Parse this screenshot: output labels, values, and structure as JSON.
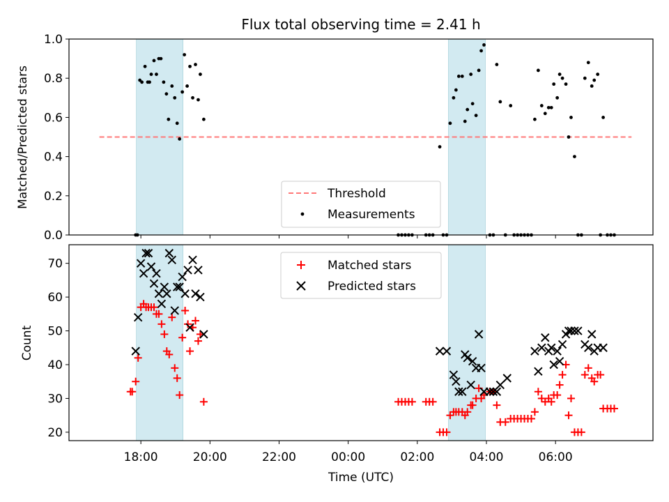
{
  "chart_data": [
    {
      "type": "scatter",
      "title": "Flux total observing time = 2.41 h",
      "xlabel": "",
      "ylabel": "Matched/Predicted stars",
      "ylim": [
        0,
        1.0
      ],
      "yticks": [
        "0.0",
        "0.2",
        "0.4",
        "0.6",
        "0.8",
        "1.0"
      ],
      "x_unit": "hours since 17:00 UTC",
      "highlight_spans": [
        [
          0.87,
          2.22
        ],
        [
          9.9,
          10.97
        ]
      ],
      "threshold": 0.5,
      "legend": {
        "placement": "lower-center",
        "threshold_label": "Threshold",
        "measurements_label": "Measurements"
      },
      "measurements": [
        [
          0.85,
          0
        ],
        [
          0.9,
          0
        ],
        [
          0.97,
          0.79
        ],
        [
          1.03,
          0.78
        ],
        [
          1.12,
          0.86
        ],
        [
          1.2,
          0.78
        ],
        [
          1.25,
          0.78
        ],
        [
          1.3,
          0.82
        ],
        [
          1.38,
          0.89
        ],
        [
          1.45,
          0.82
        ],
        [
          1.52,
          0.9
        ],
        [
          1.58,
          0.9
        ],
        [
          1.66,
          0.78
        ],
        [
          1.74,
          0.72
        ],
        [
          1.8,
          0.59
        ],
        [
          1.9,
          0.76
        ],
        [
          1.98,
          0.7
        ],
        [
          2.05,
          0.57
        ],
        [
          2.12,
          0.49
        ],
        [
          2.2,
          0.73
        ],
        [
          2.26,
          0.92
        ],
        [
          2.34,
          0.76
        ],
        [
          2.42,
          0.86
        ],
        [
          2.5,
          0.7
        ],
        [
          2.58,
          0.87
        ],
        [
          2.66,
          0.69
        ],
        [
          2.72,
          0.82
        ],
        [
          2.82,
          0.59
        ],
        [
          8.45,
          0
        ],
        [
          8.55,
          0
        ],
        [
          8.65,
          0
        ],
        [
          8.75,
          0
        ],
        [
          8.85,
          0
        ],
        [
          9.25,
          0
        ],
        [
          9.35,
          0
        ],
        [
          9.45,
          0
        ],
        [
          9.65,
          0.45
        ],
        [
          9.75,
          0
        ],
        [
          9.85,
          0
        ],
        [
          9.95,
          0.57
        ],
        [
          10.05,
          0.7
        ],
        [
          10.12,
          0.74
        ],
        [
          10.2,
          0.81
        ],
        [
          10.3,
          0.81
        ],
        [
          10.38,
          0.58
        ],
        [
          10.45,
          0.64
        ],
        [
          10.55,
          0.82
        ],
        [
          10.6,
          0.67
        ],
        [
          10.7,
          0.61
        ],
        [
          10.78,
          0.84
        ],
        [
          10.85,
          0.94
        ],
        [
          10.93,
          0.97
        ],
        [
          11.1,
          0
        ],
        [
          11.2,
          0
        ],
        [
          11.3,
          0.87
        ],
        [
          11.4,
          0.68
        ],
        [
          11.55,
          0
        ],
        [
          11.7,
          0.66
        ],
        [
          11.8,
          0
        ],
        [
          11.9,
          0
        ],
        [
          12.0,
          0
        ],
        [
          12.1,
          0
        ],
        [
          12.2,
          0
        ],
        [
          12.3,
          0
        ],
        [
          12.4,
          0.59
        ],
        [
          12.5,
          0.84
        ],
        [
          12.6,
          0.66
        ],
        [
          12.7,
          0.62
        ],
        [
          12.8,
          0.65
        ],
        [
          12.88,
          0.65
        ],
        [
          12.95,
          0.77
        ],
        [
          13.05,
          0.7
        ],
        [
          13.12,
          0.82
        ],
        [
          13.2,
          0.8
        ],
        [
          13.3,
          0.77
        ],
        [
          13.38,
          0.5
        ],
        [
          13.45,
          0.6
        ],
        [
          13.55,
          0.4
        ],
        [
          13.65,
          0
        ],
        [
          13.75,
          0
        ],
        [
          13.85,
          0.8
        ],
        [
          13.95,
          0.88
        ],
        [
          14.05,
          0.76
        ],
        [
          14.12,
          0.79
        ],
        [
          14.22,
          0.82
        ],
        [
          14.3,
          0
        ],
        [
          14.38,
          0.6
        ],
        [
          14.5,
          0
        ],
        [
          14.6,
          0
        ],
        [
          14.7,
          0
        ]
      ]
    },
    {
      "type": "scatter",
      "title": "",
      "xlabel": "Time (UTC)",
      "ylabel": "Count",
      "ylim": [
        17.5,
        75.5
      ],
      "yticks": [
        "20",
        "30",
        "40",
        "50",
        "60",
        "70"
      ],
      "xticks": [
        "18:00",
        "20:00",
        "22:00",
        "00:00",
        "02:00",
        "04:00",
        "06:00"
      ],
      "xlim_hours": [
        -1.08,
        15.82
      ],
      "legend": {
        "placement": "upper-center",
        "matched_label": "Matched stars",
        "predicted_label": "Predicted stars"
      },
      "colors": {
        "matched": "#ff0000",
        "predicted": "#000000",
        "span": "#add8e6",
        "threshold": "#ff7777"
      },
      "matched": [
        [
          0.7,
          32
        ],
        [
          0.75,
          32
        ],
        [
          0.85,
          35
        ],
        [
          0.92,
          42
        ],
        [
          1.0,
          57
        ],
        [
          1.08,
          58
        ],
        [
          1.15,
          57
        ],
        [
          1.22,
          57
        ],
        [
          1.3,
          57
        ],
        [
          1.38,
          57
        ],
        [
          1.45,
          55
        ],
        [
          1.52,
          55
        ],
        [
          1.6,
          52
        ],
        [
          1.68,
          49
        ],
        [
          1.75,
          44
        ],
        [
          1.82,
          43
        ],
        [
          1.9,
          54
        ],
        [
          1.98,
          39
        ],
        [
          2.05,
          36
        ],
        [
          2.12,
          31
        ],
        [
          2.2,
          48
        ],
        [
          2.28,
          56
        ],
        [
          2.36,
          52
        ],
        [
          2.42,
          44
        ],
        [
          2.5,
          51
        ],
        [
          2.58,
          53
        ],
        [
          2.66,
          47
        ],
        [
          2.72,
          49
        ],
        [
          2.82,
          29
        ],
        [
          8.45,
          29
        ],
        [
          8.55,
          29
        ],
        [
          8.65,
          29
        ],
        [
          8.75,
          29
        ],
        [
          8.85,
          29
        ],
        [
          9.25,
          29
        ],
        [
          9.35,
          29
        ],
        [
          9.45,
          29
        ],
        [
          9.65,
          20
        ],
        [
          9.75,
          20
        ],
        [
          9.85,
          20
        ],
        [
          9.95,
          25
        ],
        [
          10.05,
          26
        ],
        [
          10.12,
          26
        ],
        [
          10.2,
          26
        ],
        [
          10.3,
          26
        ],
        [
          10.38,
          25
        ],
        [
          10.45,
          26
        ],
        [
          10.55,
          28
        ],
        [
          10.6,
          28
        ],
        [
          10.7,
          30
        ],
        [
          10.78,
          33
        ],
        [
          10.85,
          30
        ],
        [
          10.93,
          31
        ],
        [
          11.1,
          32
        ],
        [
          11.2,
          32
        ],
        [
          11.3,
          28
        ],
        [
          11.4,
          23
        ],
        [
          11.55,
          23
        ],
        [
          11.7,
          24
        ],
        [
          11.8,
          24
        ],
        [
          11.9,
          24
        ],
        [
          12.0,
          24
        ],
        [
          12.1,
          24
        ],
        [
          12.2,
          24
        ],
        [
          12.3,
          24
        ],
        [
          12.4,
          26
        ],
        [
          12.5,
          32
        ],
        [
          12.6,
          30
        ],
        [
          12.7,
          29
        ],
        [
          12.8,
          30
        ],
        [
          12.88,
          29
        ],
        [
          12.95,
          31
        ],
        [
          13.05,
          31
        ],
        [
          13.12,
          34
        ],
        [
          13.2,
          37
        ],
        [
          13.3,
          40
        ],
        [
          13.38,
          25
        ],
        [
          13.45,
          30
        ],
        [
          13.55,
          20
        ],
        [
          13.65,
          20
        ],
        [
          13.75,
          20
        ],
        [
          13.85,
          37
        ],
        [
          13.95,
          39
        ],
        [
          14.05,
          36
        ],
        [
          14.12,
          35
        ],
        [
          14.22,
          37
        ],
        [
          14.3,
          37
        ],
        [
          14.38,
          27
        ],
        [
          14.5,
          27
        ],
        [
          14.6,
          27
        ],
        [
          14.7,
          27
        ]
      ],
      "predicted": [
        [
          0.85,
          44
        ],
        [
          0.92,
          54
        ],
        [
          1.0,
          70
        ],
        [
          1.08,
          67
        ],
        [
          1.15,
          73
        ],
        [
          1.22,
          73
        ],
        [
          1.3,
          69
        ],
        [
          1.38,
          64
        ],
        [
          1.45,
          67
        ],
        [
          1.52,
          61
        ],
        [
          1.6,
          58
        ],
        [
          1.68,
          63
        ],
        [
          1.75,
          61
        ],
        [
          1.82,
          73
        ],
        [
          1.9,
          71
        ],
        [
          1.98,
          56
        ],
        [
          2.05,
          63
        ],
        [
          2.12,
          63
        ],
        [
          2.2,
          66
        ],
        [
          2.28,
          61
        ],
        [
          2.36,
          68
        ],
        [
          2.42,
          51
        ],
        [
          2.5,
          71
        ],
        [
          2.58,
          61
        ],
        [
          2.66,
          68
        ],
        [
          2.72,
          60
        ],
        [
          2.82,
          49
        ],
        [
          9.65,
          44
        ],
        [
          9.85,
          44
        ],
        [
          10.05,
          37
        ],
        [
          10.12,
          35
        ],
        [
          10.2,
          32
        ],
        [
          10.3,
          32
        ],
        [
          10.38,
          43
        ],
        [
          10.45,
          42
        ],
        [
          10.55,
          34
        ],
        [
          10.6,
          41
        ],
        [
          10.7,
          39
        ],
        [
          10.78,
          49
        ],
        [
          10.85,
          39
        ],
        [
          10.93,
          32
        ],
        [
          11.1,
          32
        ],
        [
          11.2,
          32
        ],
        [
          11.3,
          32
        ],
        [
          11.4,
          34
        ],
        [
          11.6,
          36
        ],
        [
          12.4,
          44
        ],
        [
          12.5,
          38
        ],
        [
          12.6,
          45
        ],
        [
          12.7,
          48
        ],
        [
          12.8,
          44
        ],
        [
          12.88,
          45
        ],
        [
          12.95,
          40
        ],
        [
          13.05,
          44
        ],
        [
          13.12,
          41
        ],
        [
          13.2,
          46
        ],
        [
          13.3,
          49
        ],
        [
          13.38,
          50
        ],
        [
          13.45,
          50
        ],
        [
          13.55,
          50
        ],
        [
          13.65,
          50
        ],
        [
          13.85,
          46
        ],
        [
          13.95,
          45
        ],
        [
          14.05,
          49
        ],
        [
          14.12,
          44
        ],
        [
          14.22,
          45
        ],
        [
          14.38,
          45
        ]
      ]
    }
  ]
}
